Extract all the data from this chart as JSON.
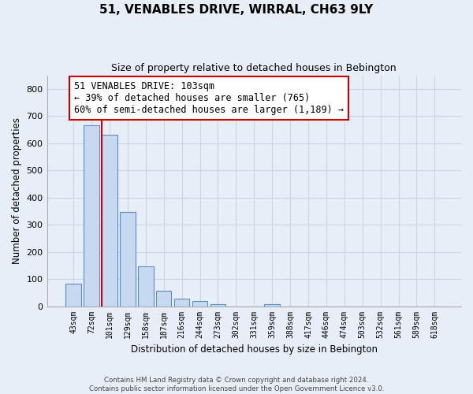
{
  "title": "51, VENABLES DRIVE, WIRRAL, CH63 9LY",
  "subtitle": "Size of property relative to detached houses in Bebington",
  "xlabel": "Distribution of detached houses by size in Bebington",
  "ylabel": "Number of detached properties",
  "bin_labels": [
    "43sqm",
    "72sqm",
    "101sqm",
    "129sqm",
    "158sqm",
    "187sqm",
    "216sqm",
    "244sqm",
    "273sqm",
    "302sqm",
    "331sqm",
    "359sqm",
    "388sqm",
    "417sqm",
    "446sqm",
    "474sqm",
    "503sqm",
    "532sqm",
    "561sqm",
    "589sqm",
    "618sqm"
  ],
  "bar_heights": [
    83,
    665,
    630,
    348,
    148,
    57,
    27,
    18,
    8,
    0,
    0,
    6,
    0,
    0,
    0,
    0,
    0,
    0,
    0,
    0,
    0
  ],
  "bar_color": "#c6d9f0",
  "bar_edge_color": "#5a8fc3",
  "property_line_index": 2,
  "property_sqm": 103,
  "annotation_line1": "51 VENABLES DRIVE: 103sqm",
  "annotation_line2": "← 39% of detached houses are smaller (765)",
  "annotation_line3": "60% of semi-detached houses are larger (1,189) →",
  "annotation_box_color": "#ffffff",
  "annotation_box_edge": "#cc0000",
  "property_line_color": "#cc0000",
  "ylim": [
    0,
    850
  ],
  "yticks": [
    0,
    100,
    200,
    300,
    400,
    500,
    600,
    700,
    800
  ],
  "grid_color": "#cdd5e3",
  "background_color": "#e8eef8",
  "footer_line1": "Contains HM Land Registry data © Crown copyright and database right 2024.",
  "footer_line2": "Contains public sector information licensed under the Open Government Licence v3.0."
}
